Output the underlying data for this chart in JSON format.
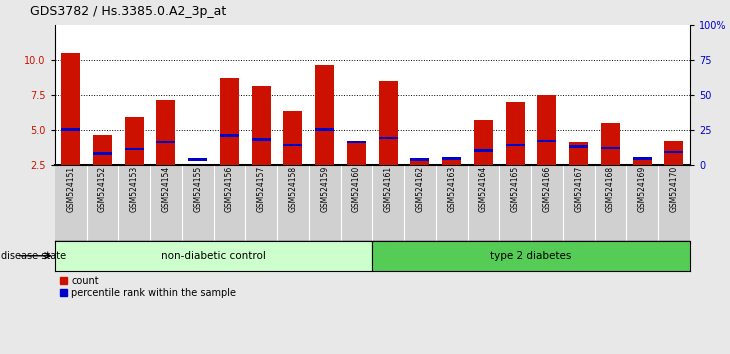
{
  "title": "GDS3782 / Hs.3385.0.A2_3p_at",
  "samples": [
    "GSM524151",
    "GSM524152",
    "GSM524153",
    "GSM524154",
    "GSM524155",
    "GSM524156",
    "GSM524157",
    "GSM524158",
    "GSM524159",
    "GSM524160",
    "GSM524161",
    "GSM524162",
    "GSM524163",
    "GSM524164",
    "GSM524165",
    "GSM524166",
    "GSM524167",
    "GSM524168",
    "GSM524169",
    "GSM524170"
  ],
  "count_values": [
    10.5,
    4.6,
    5.9,
    7.1,
    2.5,
    8.7,
    8.1,
    6.3,
    9.6,
    4.1,
    8.5,
    2.8,
    2.9,
    5.7,
    7.0,
    7.5,
    4.1,
    5.5,
    2.9,
    4.2
  ],
  "percentile_values": [
    5.0,
    3.3,
    3.6,
    4.1,
    2.85,
    4.6,
    4.3,
    3.9,
    5.0,
    4.1,
    4.4,
    2.88,
    2.95,
    3.5,
    3.9,
    4.2,
    3.8,
    3.7,
    2.95,
    3.4
  ],
  "non_diabetic_count": 10,
  "type2_diabetes_count": 10,
  "group1_label": "non-diabetic control",
  "group2_label": "type 2 diabetes",
  "group1_color": "#ccffcc",
  "group2_color": "#55cc55",
  "bar_color_red": "#cc1100",
  "bar_color_blue": "#0000cc",
  "ylim_left": [
    2.5,
    12.5
  ],
  "yticks_left": [
    2.5,
    5.0,
    7.5,
    10.0
  ],
  "ylim_right": [
    0,
    100
  ],
  "yticks_right": [
    0,
    25,
    50,
    75,
    100
  ],
  "ylabel_right_labels": [
    "0",
    "25",
    "50",
    "75",
    "100%"
  ],
  "legend_count": "count",
  "legend_percentile": "percentile rank within the sample",
  "disease_state_label": "disease state",
  "bg_color": "#e8e8e8",
  "plot_bg": "#ffffff",
  "bar_width": 0.6,
  "blue_bar_height": 0.18
}
